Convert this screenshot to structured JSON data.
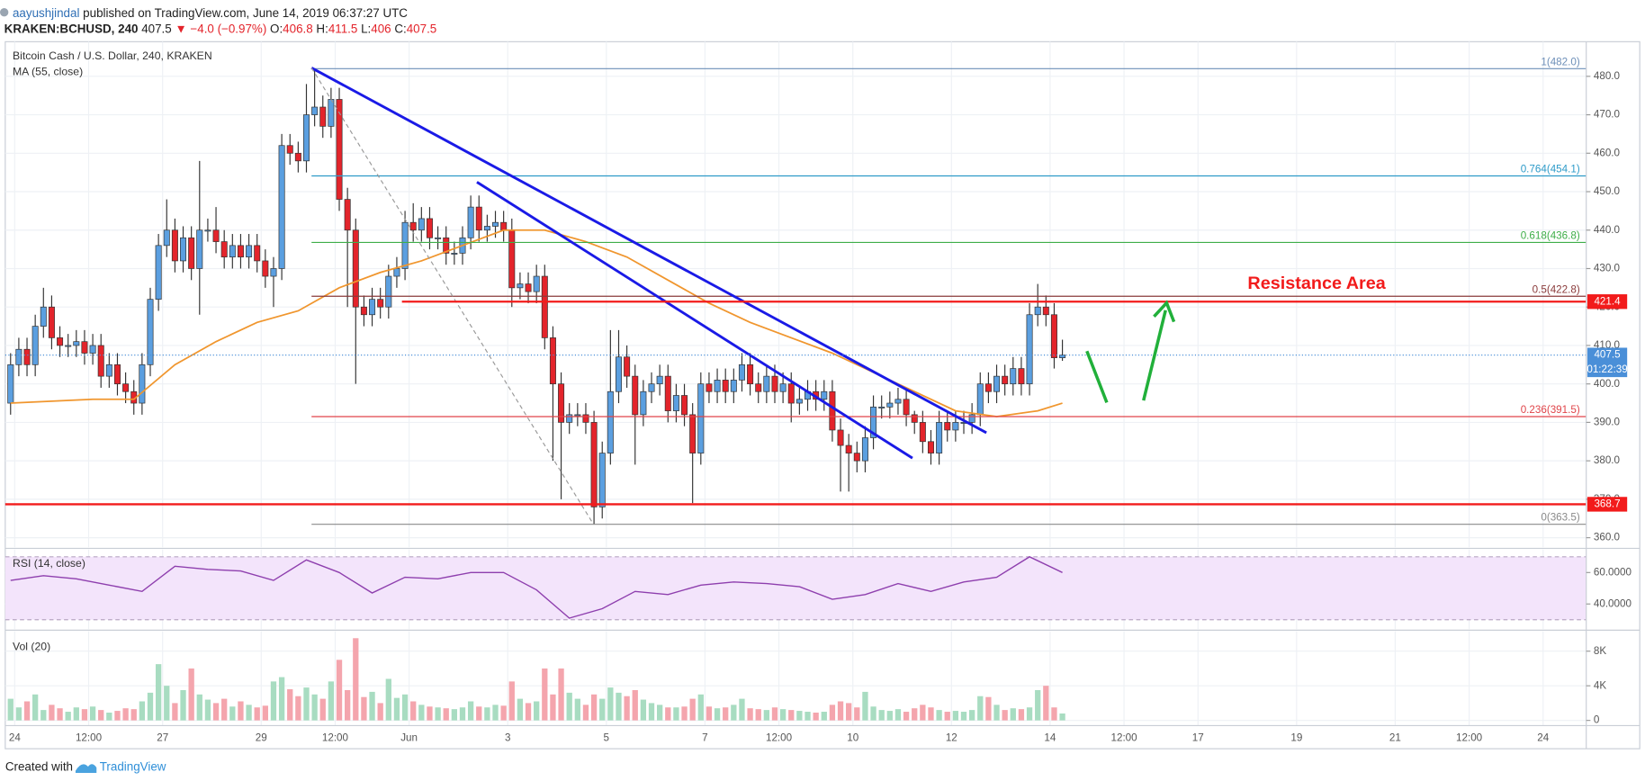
{
  "header": {
    "author": "aayushjindal",
    "published": "published on TradingView.com, June 14, 2019 06:37:27 UTC",
    "symbol": "KRAKEN:BCHUSD, 240",
    "last": 407.5,
    "change": "▼ −4.0 (−0.97%)",
    "ohlc": [
      {
        "label": "O:",
        "value": 406.8
      },
      {
        "label": "H:",
        "value": 411.5
      },
      {
        "label": "L:",
        "value": 406.0
      },
      {
        "label": "C:",
        "value": 407.5
      }
    ]
  },
  "footer": {
    "text": "Created with",
    "brand": "TradingView"
  },
  "chart_data": [
    {
      "type": "candlestick",
      "title": "Bitcoin Cash / U.S. Dollar, 240, KRAKEN",
      "x": [
        -2,
        2,
        6,
        10,
        14,
        18,
        22,
        26,
        30,
        34,
        38,
        42,
        46,
        50,
        54,
        58,
        62,
        66,
        70,
        74,
        78,
        82,
        86,
        90,
        94,
        98,
        102,
        106,
        110,
        114,
        118,
        122,
        126,
        130,
        134,
        138,
        142,
        146,
        150,
        154,
        158,
        162,
        166,
        170,
        174,
        178,
        182,
        186,
        190,
        194,
        198,
        202,
        206,
        210,
        214,
        218,
        222,
        226,
        230,
        234,
        238,
        242,
        246,
        250,
        254,
        258,
        262,
        266,
        270,
        274,
        278,
        282,
        286,
        290,
        294,
        298,
        302,
        306,
        310,
        314,
        318,
        322,
        326,
        330,
        334,
        338,
        342,
        346,
        350,
        354,
        358,
        362,
        366,
        370,
        374,
        378,
        382,
        386,
        390,
        394,
        398,
        402,
        406,
        410,
        414,
        418,
        422,
        426,
        430,
        434,
        438,
        442,
        446,
        450,
        454,
        458,
        462,
        466,
        470,
        474,
        478,
        482,
        486,
        490,
        494,
        498,
        502,
        506,
        510
      ],
      "open": [
        395,
        405,
        409,
        405,
        415,
        420,
        412,
        410,
        410,
        411,
        408,
        410,
        402,
        405,
        400,
        398,
        395,
        405,
        422,
        436,
        440,
        432,
        438,
        430,
        440,
        440,
        437,
        433,
        436,
        433,
        436,
        432,
        428,
        430,
        462,
        460,
        458,
        470,
        472,
        467,
        474,
        448,
        440,
        420,
        418,
        422,
        420,
        428,
        430,
        442,
        440,
        443,
        438,
        438,
        434,
        434,
        438,
        446,
        440,
        441,
        442,
        440,
        425,
        426,
        424,
        428,
        412,
        400,
        390,
        392,
        392,
        390,
        368,
        382,
        398,
        407,
        402,
        392,
        398,
        400,
        402,
        393,
        397,
        392,
        382,
        400,
        398,
        401,
        398,
        401,
        405,
        400,
        398,
        402,
        398,
        400,
        395,
        396,
        398,
        396,
        398,
        388,
        384,
        382,
        380,
        386,
        394,
        394,
        395,
        396,
        392,
        390,
        385,
        382,
        390,
        388,
        390,
        390,
        392,
        400,
        398,
        402,
        400,
        404,
        400,
        418,
        420,
        418,
        406.8
      ],
      "high": [
        408,
        412,
        412,
        418,
        425,
        423,
        415,
        413,
        414,
        414,
        413,
        413,
        408,
        408,
        403,
        401,
        408,
        425,
        439,
        448,
        443,
        441,
        441,
        458,
        443,
        446,
        440,
        439,
        439,
        439,
        439,
        435,
        433,
        465,
        465,
        463,
        478,
        482,
        475,
        477,
        477,
        451,
        443,
        423,
        425,
        425,
        431,
        433,
        445,
        447,
        446,
        446,
        441,
        441,
        437,
        441,
        449,
        449,
        444,
        445,
        445,
        443,
        429,
        429,
        431,
        431,
        415,
        403,
        395,
        395,
        395,
        393,
        385,
        414,
        414,
        410,
        405,
        401,
        403,
        405,
        405,
        400,
        400,
        395,
        403,
        403,
        404,
        404,
        404,
        408,
        408,
        403,
        405,
        405,
        403,
        403,
        399,
        401,
        401,
        401,
        401,
        391,
        387,
        385,
        389,
        397,
        397,
        398,
        399,
        399,
        393,
        393,
        388,
        393,
        393,
        393,
        393,
        395,
        403,
        403,
        405,
        405,
        407,
        407,
        421,
        426,
        423,
        421,
        411.5
      ],
      "low": [
        392,
        402,
        402,
        402,
        412,
        409,
        407,
        407,
        407,
        405,
        405,
        399,
        399,
        397,
        395,
        392,
        392,
        402,
        419,
        433,
        429,
        429,
        427,
        418,
        437,
        434,
        430,
        430,
        430,
        430,
        429,
        425,
        420,
        427,
        457,
        455,
        455,
        467,
        464,
        464,
        445,
        420,
        400,
        415,
        415,
        417,
        417,
        425,
        427,
        437,
        437,
        435,
        435,
        431,
        431,
        431,
        435,
        437,
        437,
        438,
        437,
        420,
        422,
        421,
        421,
        409,
        380,
        370,
        387,
        389,
        387,
        363.5,
        365,
        379,
        395,
        399,
        379,
        389,
        395,
        397,
        390,
        390,
        389,
        369,
        379,
        395,
        395,
        395,
        395,
        398,
        397,
        395,
        395,
        395,
        395,
        390,
        392,
        393,
        393,
        393,
        385,
        372,
        372,
        377,
        377,
        383,
        391,
        391,
        392,
        389,
        387,
        382,
        379,
        379,
        385,
        385,
        387,
        387,
        389,
        395,
        395,
        397,
        397,
        397,
        397,
        415,
        415,
        404,
        406.0
      ],
      "close": [
        405,
        409,
        405,
        415,
        420,
        412,
        410,
        410,
        411,
        408,
        410,
        402,
        405,
        400,
        398,
        395,
        405,
        422,
        436,
        440,
        432,
        438,
        430,
        440,
        440,
        437,
        433,
        436,
        433,
        436,
        432,
        428,
        430,
        462,
        460,
        458,
        470,
        472,
        467,
        474,
        448,
        440,
        420,
        418,
        422,
        420,
        428,
        430,
        442,
        440,
        443,
        438,
        438,
        434,
        434,
        438,
        446,
        440,
        441,
        442,
        440,
        425,
        426,
        424,
        428,
        412,
        400,
        390,
        392,
        392,
        390,
        368,
        382,
        398,
        407,
        402,
        392,
        398,
        400,
        402,
        393,
        397,
        392,
        382,
        400,
        398,
        401,
        398,
        401,
        405,
        400,
        398,
        402,
        398,
        400,
        395,
        396,
        398,
        396,
        398,
        388,
        384,
        382,
        380,
        386,
        394,
        394,
        395,
        396,
        392,
        390,
        385,
        382,
        390,
        388,
        390,
        390,
        392,
        400,
        398,
        402,
        400,
        404,
        400,
        418,
        420,
        418,
        406.8,
        407.5
      ],
      "up_color": "#5b9fe0",
      "down_color": "#e3242b",
      "xlim": [
        -4.6,
        765
      ],
      "ylim": [
        357.5,
        489
      ],
      "xticks": [
        {
          "value": 0,
          "label": "24"
        },
        {
          "value": 36,
          "label": "12:00"
        },
        {
          "value": 72,
          "label": "27"
        },
        {
          "value": 120,
          "label": "29"
        },
        {
          "value": 156,
          "label": "12:00"
        },
        {
          "value": 192,
          "label": "Jun"
        },
        {
          "value": 240,
          "label": "3"
        },
        {
          "value": 288,
          "label": "5"
        },
        {
          "value": 336,
          "label": "7"
        },
        {
          "value": 372,
          "label": "12:00"
        },
        {
          "value": 408,
          "label": "10"
        },
        {
          "value": 456,
          "label": "12"
        },
        {
          "value": 504,
          "label": "14"
        },
        {
          "value": 540,
          "label": "12:00"
        },
        {
          "value": 576,
          "label": "17"
        },
        {
          "value": 624,
          "label": "19"
        },
        {
          "value": 672,
          "label": "21"
        },
        {
          "value": 708,
          "label": "12:00"
        },
        {
          "value": 744,
          "label": "24"
        }
      ],
      "yticks": [
        {
          "value": 360,
          "label": "360.0"
        },
        {
          "value": 370,
          "label": "370.0"
        },
        {
          "value": 380,
          "label": "380.0"
        },
        {
          "value": 390,
          "label": "390.0"
        },
        {
          "value": 400,
          "label": "400.0"
        },
        {
          "value": 410,
          "label": "410.0"
        },
        {
          "value": 420,
          "label": "420.0"
        },
        {
          "value": 430,
          "label": "430.0"
        },
        {
          "value": 440,
          "label": "440.0"
        },
        {
          "value": 450,
          "label": "450.0"
        },
        {
          "value": 460,
          "label": "460.0"
        },
        {
          "value": 470,
          "label": "470.0"
        },
        {
          "value": 480,
          "label": "480.0"
        }
      ],
      "grid": true,
      "overlays": [
        {
          "name": "MA (55, close)",
          "color": "#f0962e",
          "x": [
            -2,
            18,
            38,
            58,
            78,
            98,
            118,
            138,
            158,
            178,
            198,
            218,
            238,
            258,
            278,
            298,
            318,
            338,
            358,
            378,
            398,
            418,
            438,
            458,
            478,
            498,
            510
          ],
          "values": [
            395,
            395.5,
            396,
            396,
            405,
            411,
            416,
            419,
            425,
            429,
            432,
            436,
            440,
            440,
            437,
            433,
            427,
            421,
            416,
            412,
            408,
            403,
            398,
            393,
            391.5,
            393,
            395
          ]
        }
      ],
      "fib_start": 144.5,
      "fib_levels": [
        {
          "value": 482.0,
          "label": "1(482.0)",
          "color": "#6d8fb8"
        },
        {
          "value": 454.1,
          "label": "0.764(454.1)",
          "color": "#2e9bc9"
        },
        {
          "value": 436.8,
          "label": "0.618(436.8)",
          "color": "#3fae49"
        },
        {
          "value": 422.8,
          "label": "0.5(422.8)",
          "color": "#8a3a3a"
        },
        {
          "value": 391.5,
          "label": "0.236(391.5)",
          "color": "#e0454a"
        },
        {
          "value": 363.5,
          "label": "0(363.5)",
          "color": "#8a8a8a"
        }
      ],
      "trendlines": [
        {
          "x": [
            144.5,
            473
          ],
          "y": [
            482.2,
            387.3
          ],
          "color": "#1a1ae6",
          "width": 2.5
        },
        {
          "x": [
            225,
            437
          ],
          "y": [
            452.5,
            380.7
          ],
          "color": "#1a1ae6",
          "width": 2.5
        },
        {
          "x": [
            144.5,
            281.4
          ],
          "y": [
            482.2,
            363.8
          ],
          "color": "#999999",
          "width": 1,
          "dash": true
        }
      ],
      "levels": [
        {
          "value": 421.4,
          "label": "421.4",
          "x_start": 188.5,
          "color": "#f21b1b"
        },
        {
          "value": 368.7,
          "label": "368.7",
          "color": "#f21b1b"
        }
      ],
      "last_price": {
        "value": 407.5,
        "label": "407.5",
        "countdown": "01:22:39",
        "color": "#4a8fd8"
      },
      "annotation": "Resistance Area"
    },
    {
      "type": "line",
      "title": "RSI (14, close)",
      "color": "#8e3fae",
      "x": [
        -2,
        14,
        30,
        46,
        62,
        78,
        94,
        110,
        126,
        142,
        158,
        174,
        190,
        206,
        222,
        238,
        254,
        270,
        286,
        302,
        318,
        334,
        350,
        366,
        382,
        398,
        414,
        430,
        446,
        462,
        478,
        494,
        510
      ],
      "values": [
        55,
        58,
        56,
        52,
        48,
        64,
        62,
        61,
        55,
        68,
        60,
        47,
        57,
        56,
        60,
        60,
        49,
        31,
        37,
        48,
        46,
        52,
        54,
        53,
        51,
        43,
        46,
        53,
        48,
        54,
        57,
        70,
        60
      ],
      "xlim": [
        -4.6,
        765
      ],
      "ylim": [
        24,
        74.7
      ],
      "yticks": [
        {
          "value": 60,
          "label": "60.0000"
        },
        {
          "value": 40,
          "label": "40.0000"
        }
      ],
      "band": [
        30,
        70
      ],
      "band_color": "#f3e4fb"
    },
    {
      "type": "volume",
      "title": "Vol (20)",
      "up_color": "#a8dcc1",
      "down_color": "#f4a5ad",
      "x": [
        -2,
        2,
        6,
        10,
        14,
        18,
        22,
        26,
        30,
        34,
        38,
        42,
        46,
        50,
        54,
        58,
        62,
        66,
        70,
        74,
        78,
        82,
        86,
        90,
        94,
        98,
        102,
        106,
        110,
        114,
        118,
        122,
        126,
        130,
        134,
        138,
        142,
        146,
        150,
        154,
        158,
        162,
        166,
        170,
        174,
        178,
        182,
        186,
        190,
        194,
        198,
        202,
        206,
        210,
        214,
        218,
        222,
        226,
        230,
        234,
        238,
        242,
        246,
        250,
        254,
        258,
        262,
        266,
        270,
        274,
        278,
        282,
        286,
        290,
        294,
        298,
        302,
        306,
        310,
        314,
        318,
        322,
        326,
        330,
        334,
        338,
        342,
        346,
        350,
        354,
        358,
        362,
        366,
        370,
        374,
        378,
        382,
        386,
        390,
        394,
        398,
        402,
        406,
        410,
        414,
        418,
        422,
        426,
        430,
        434,
        438,
        442,
        446,
        450,
        454,
        458,
        462,
        466,
        470,
        474,
        478,
        482,
        486,
        490,
        494,
        498,
        502,
        506,
        510
      ],
      "values": [
        2500,
        1500,
        2200,
        3000,
        1200,
        1800,
        1400,
        1000,
        1500,
        1300,
        1600,
        1200,
        900,
        1100,
        1400,
        1300,
        2200,
        3200,
        6500,
        4000,
        2000,
        3500,
        6000,
        3000,
        2400,
        2000,
        2500,
        1600,
        2200,
        1800,
        1500,
        1700,
        4500,
        5000,
        3600,
        2800,
        3800,
        3000,
        2500,
        4500,
        7000,
        3500,
        9500,
        2700,
        3300,
        2000,
        4800,
        2600,
        3000,
        2200,
        1800,
        1600,
        1500,
        1400,
        1300,
        1500,
        2200,
        1600,
        1500,
        1800,
        1700,
        4500,
        2500,
        2000,
        2200,
        6000,
        3000,
        6000,
        3200,
        2500,
        1800,
        3000,
        2500,
        3800,
        3200,
        2800,
        3500,
        2400,
        2000,
        1800,
        1500,
        1500,
        1600,
        2500,
        3000,
        1600,
        1400,
        1500,
        1800,
        2500,
        1400,
        1300,
        1200,
        1500,
        1300,
        1200,
        1100,
        1000,
        900,
        1000,
        1800,
        2200,
        2000,
        1500,
        3300,
        1600,
        1200,
        1100,
        1300,
        1000,
        1400,
        1800,
        1500,
        1200,
        1000,
        1100,
        1000,
        1200,
        2800,
        2700,
        1800,
        1200,
        1400,
        1300,
        1500,
        3500,
        4000,
        1500,
        800
      ],
      "xlim": [
        -4.6,
        765
      ],
      "ylim": [
        -606,
        10303
      ],
      "yticks": [
        0,
        {
          "value": 4000,
          "label": "4K"
        },
        {
          "value": 8000,
          "label": "8K"
        }
      ]
    }
  ]
}
